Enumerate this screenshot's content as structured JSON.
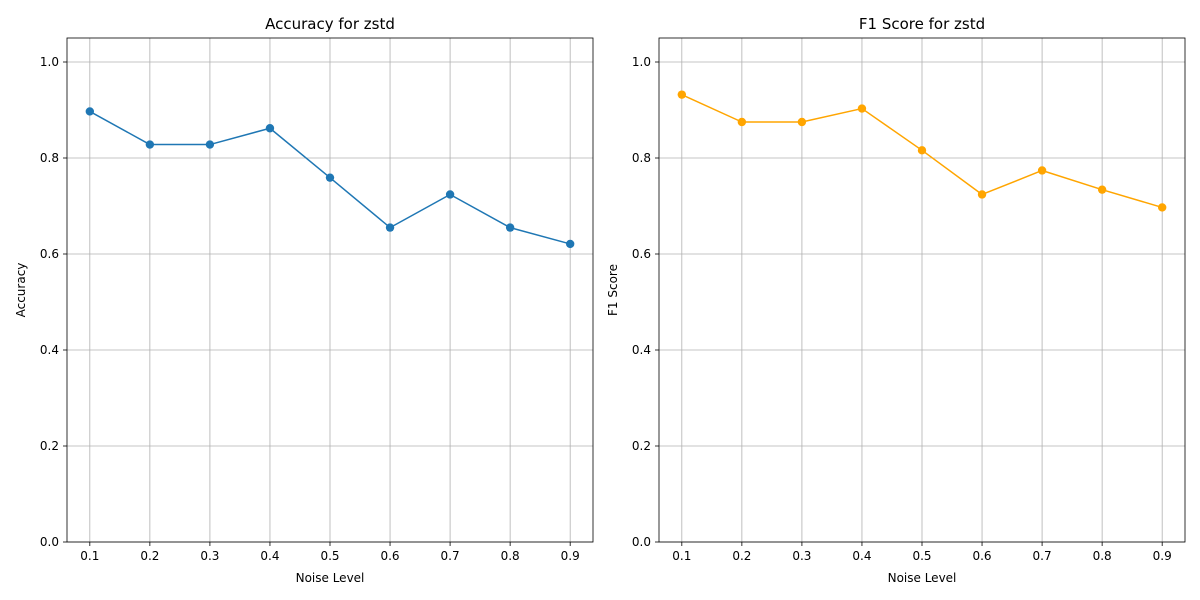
{
  "chart_data": [
    {
      "type": "line",
      "title": "Accuracy for zstd",
      "xlabel": "Noise Level",
      "ylabel": "Accuracy",
      "x": [
        0.1,
        0.2,
        0.3,
        0.4,
        0.5,
        0.6,
        0.7,
        0.8,
        0.9
      ],
      "x_tick_labels": [
        "0.1",
        "0.2",
        "0.3",
        "0.4",
        "0.5",
        "0.6",
        "0.7",
        "0.8",
        "0.9"
      ],
      "y_ticks": [
        0.0,
        0.2,
        0.4,
        0.6,
        0.8,
        1.0
      ],
      "y_tick_labels": [
        "0.0",
        "0.2",
        "0.4",
        "0.6",
        "0.8",
        "1.0"
      ],
      "xlim": [
        0.062,
        0.938
      ],
      "ylim": [
        0.0,
        1.05
      ],
      "grid": true,
      "marker": "circle",
      "series": [
        {
          "color": "#1f77b4",
          "values": [
            0.897,
            0.828,
            0.828,
            0.862,
            0.759,
            0.655,
            0.724,
            0.655,
            0.621
          ]
        }
      ]
    },
    {
      "type": "line",
      "title": "F1 Score for zstd",
      "xlabel": "Noise Level",
      "ylabel": "F1 Score",
      "x": [
        0.1,
        0.2,
        0.3,
        0.4,
        0.5,
        0.6,
        0.7,
        0.8,
        0.9
      ],
      "x_tick_labels": [
        "0.1",
        "0.2",
        "0.3",
        "0.4",
        "0.5",
        "0.6",
        "0.7",
        "0.8",
        "0.9"
      ],
      "y_ticks": [
        0.0,
        0.2,
        0.4,
        0.6,
        0.8,
        1.0
      ],
      "y_tick_labels": [
        "0.0",
        "0.2",
        "0.4",
        "0.6",
        "0.8",
        "1.0"
      ],
      "xlim": [
        0.062,
        0.938
      ],
      "ylim": [
        0.0,
        1.05
      ],
      "grid": true,
      "marker": "circle",
      "series": [
        {
          "color": "#ffa500",
          "values": [
            0.932,
            0.875,
            0.875,
            0.903,
            0.816,
            0.724,
            0.774,
            0.734,
            0.697
          ]
        }
      ]
    }
  ]
}
